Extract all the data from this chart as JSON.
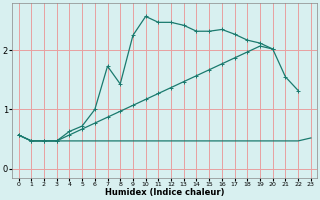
{
  "xlabel": "Humidex (Indice chaleur)",
  "bg_color": "#d8f0f0",
  "grid_color": "#e8a0a0",
  "line_color": "#1a7a6e",
  "xlim": [
    -0.5,
    23.5
  ],
  "ylim": [
    -0.15,
    2.8
  ],
  "xticks": [
    0,
    1,
    2,
    3,
    4,
    5,
    6,
    7,
    8,
    9,
    10,
    11,
    12,
    13,
    14,
    15,
    16,
    17,
    18,
    19,
    20,
    21,
    22,
    23
  ],
  "yticks": [
    0,
    1,
    2
  ],
  "line1_x": [
    0,
    1,
    2,
    3,
    4,
    5,
    6,
    7,
    8,
    9,
    10,
    11,
    12,
    13,
    14,
    15,
    16,
    17,
    18,
    19,
    20,
    21,
    22
  ],
  "line1_y": [
    0.57,
    0.47,
    0.47,
    0.47,
    0.63,
    0.72,
    1.0,
    1.73,
    1.43,
    2.25,
    2.57,
    2.47,
    2.47,
    2.42,
    2.32,
    2.32,
    2.35,
    2.27,
    2.17,
    2.12,
    2.02,
    1.55,
    1.32
  ],
  "line2_x": [
    0,
    1,
    2,
    3,
    4,
    5,
    6,
    7,
    8,
    9,
    10,
    11,
    12,
    13,
    14,
    15,
    16,
    17,
    18,
    19,
    20
  ],
  "line2_y": [
    0.57,
    0.47,
    0.47,
    0.47,
    0.57,
    0.67,
    0.77,
    0.87,
    0.97,
    1.07,
    1.17,
    1.27,
    1.37,
    1.47,
    1.57,
    1.67,
    1.77,
    1.87,
    1.97,
    2.07,
    2.02
  ],
  "line3_x": [
    0,
    1,
    2,
    3,
    4,
    5,
    6,
    7,
    8,
    9,
    10,
    11,
    12,
    13,
    14,
    15,
    16,
    17,
    18,
    19,
    20,
    21,
    22,
    23
  ],
  "line3_y": [
    0.57,
    0.47,
    0.47,
    0.47,
    0.47,
    0.47,
    0.47,
    0.47,
    0.47,
    0.47,
    0.47,
    0.47,
    0.47,
    0.47,
    0.47,
    0.47,
    0.47,
    0.47,
    0.47,
    0.47,
    0.47,
    0.47,
    0.47,
    0.52
  ]
}
